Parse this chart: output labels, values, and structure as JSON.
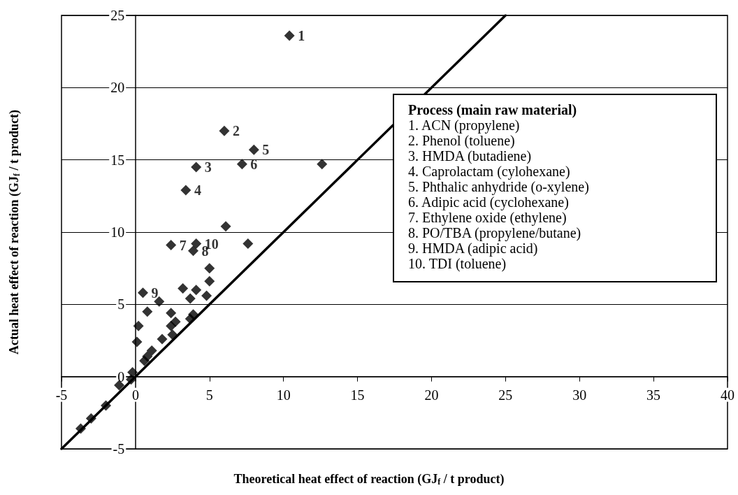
{
  "chart_data": {
    "type": "scatter",
    "xlabel": "Theoretical heat effect of reaction (GJ$_{f}$ / t product)",
    "ylabel": "Actual heat effect of reaction (GJ$_{f}$ / t product)",
    "xlim": [
      -5,
      40
    ],
    "xticks": [
      -5,
      0,
      5,
      10,
      15,
      20,
      25,
      30,
      35,
      40
    ],
    "ylim": [
      -5,
      25
    ],
    "yticks": [
      -5,
      0,
      5,
      10,
      15,
      20,
      25
    ],
    "grid": "y",
    "marker": "diamond",
    "series": [
      {
        "color": "#000000",
        "x": [
          10.4,
          6.0,
          8.0,
          4.1,
          7.2,
          12.6,
          3.4,
          6.1,
          2.4,
          4.1,
          3.9,
          7.6,
          5.0,
          5.0,
          0.5,
          3.2,
          4.1,
          3.7,
          4.8,
          1.6,
          0.8,
          2.4,
          3.9,
          3.7,
          2.7,
          2.4,
          0.2,
          2.5,
          1.8,
          0.1,
          1.1,
          0.8,
          0.6,
          -0.2,
          -0.3,
          -1.1,
          -2.0,
          -3.0,
          -3.7
        ],
        "values": [
          23.6,
          17.0,
          15.7,
          14.5,
          14.7,
          14.7,
          12.9,
          10.4,
          9.1,
          9.2,
          8.7,
          9.2,
          7.5,
          6.6,
          5.8,
          6.1,
          6.0,
          5.4,
          5.6,
          5.2,
          4.5,
          4.4,
          4.3,
          4.0,
          3.8,
          3.5,
          3.5,
          2.9,
          2.6,
          2.4,
          1.8,
          1.4,
          1.1,
          0.3,
          -0.2,
          -0.6,
          -2.0,
          -2.9,
          -3.6
        ]
      },
      {
        "type": "line",
        "color": "#000000",
        "marker": "none",
        "x": [
          -5,
          25
        ],
        "values": [
          -5,
          25
        ]
      }
    ],
    "annotations": [
      {
        "text": "1",
        "x": 10.4,
        "y": 23.6
      },
      {
        "text": "2",
        "x": 6.0,
        "y": 17.0
      },
      {
        "text": "5",
        "x": 8.0,
        "y": 15.7
      },
      {
        "text": "3",
        "x": 4.1,
        "y": 14.5
      },
      {
        "text": "6",
        "x": 7.2,
        "y": 14.7
      },
      {
        "text": "4",
        "x": 3.4,
        "y": 12.9
      },
      {
        "text": "7",
        "x": 2.4,
        "y": 9.1
      },
      {
        "text": "10",
        "x": 4.1,
        "y": 9.2
      },
      {
        "text": "8",
        "x": 3.9,
        "y": 8.7
      },
      {
        "text": "9",
        "x": 0.5,
        "y": 5.8
      },
      "Process (main raw material)",
      "1. ACN (propylene)",
      "2. Phenol (toluene)",
      "3. HMDA (butadiene)",
      "4. Caprolactam (cylohexane)",
      "5. Phthalic anhydride (o-xylene)",
      "6. Adipic acid (cyclohexane)",
      "7. Ethylene oxide (ethylene)",
      "8. PO/TBA (propylene/butane)",
      "9. HMDA (adipic acid)",
      "10. TDI (toluene)"
    ]
  }
}
